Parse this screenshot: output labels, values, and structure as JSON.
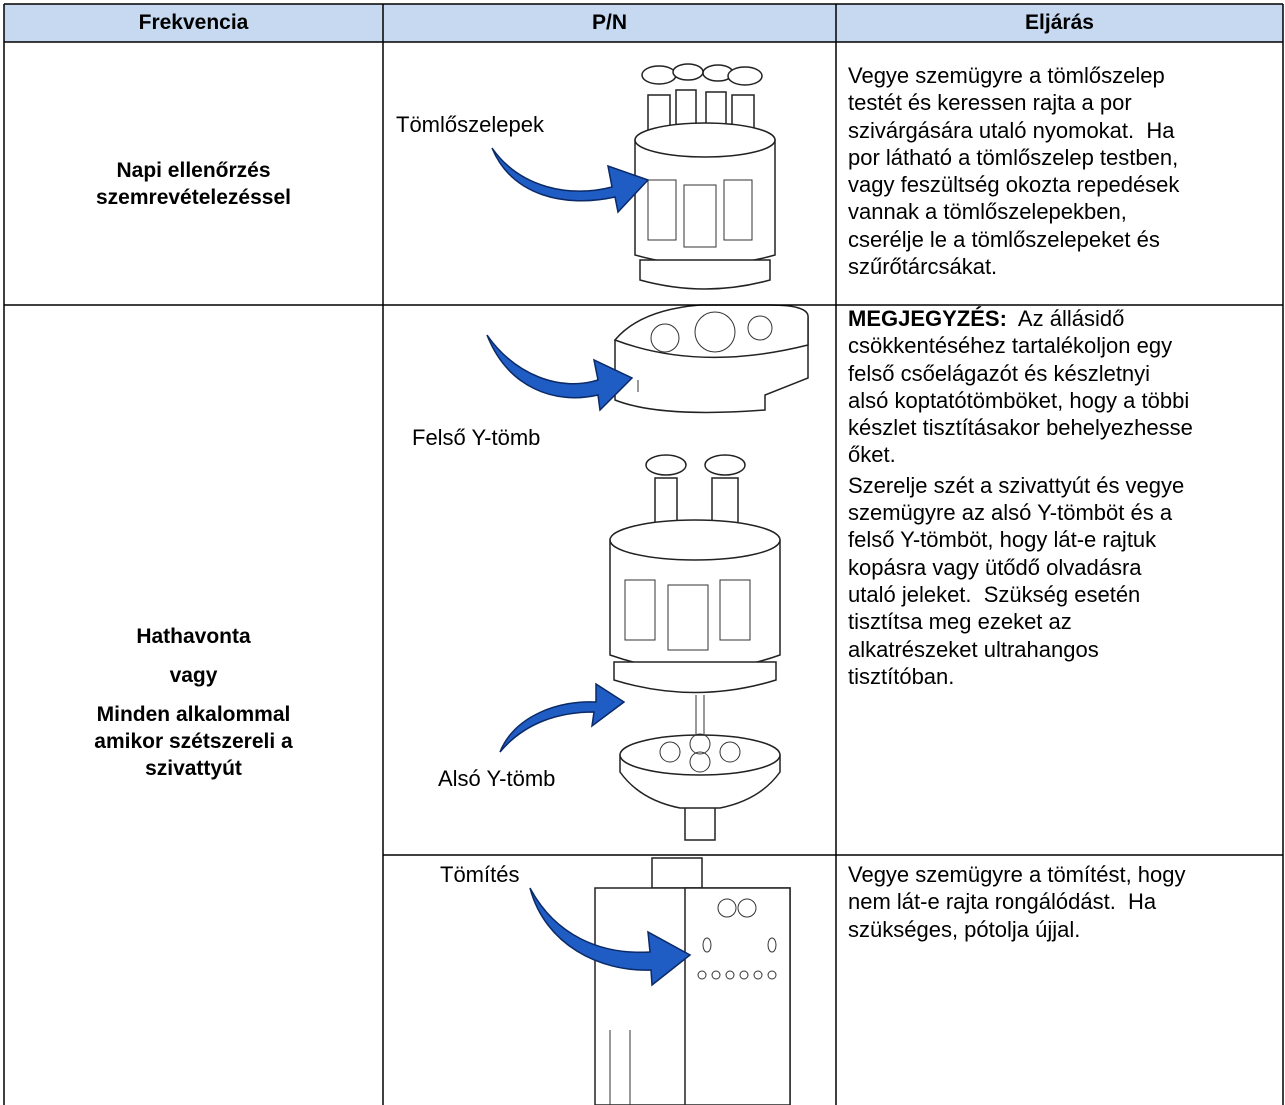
{
  "table": {
    "headers": [
      "Frekvencia",
      "P/N",
      "Eljárás"
    ],
    "rows": [
      {
        "frequency": [
          [
            "Napi ellenőrzés",
            "szemrevételezéssel"
          ]
        ],
        "items": [
          {
            "image_labels": [
              "Tömlőszelepek"
            ],
            "procedure": [
              {
                "lines": [
                  "Vegye szemügyre a tömlőszelep",
                  "testét és keressen rajta a por",
                  "szivárgására utaló nyomokat.  Ha",
                  "por látható a tömlőszelep testben,",
                  "vagy feszültség okozta repedések",
                  "vannak a tömlőszelepekben,",
                  "cserélje le a tömlőszelepeket és",
                  "szűrőtárcsákat."
                ]
              }
            ]
          }
        ]
      },
      {
        "frequency": [
          [
            "Hathavonta"
          ],
          [
            "vagy"
          ],
          [
            "Minden alkalommal",
            "amikor szétszereli a",
            "szivattyút"
          ]
        ],
        "items": [
          {
            "image_labels": [
              "Felső Y-tömb",
              "Alsó Y-tömb"
            ],
            "procedure": [
              {
                "lead": "MEGJEGYZÉS:",
                "lines": [
                  "  Az állásidő",
                  "csökkentéséhez tartalékoljon egy",
                  "felső csőelágazót és készletnyi",
                  "alsó koptatótömböket, hogy a többi",
                  "készlet tisztításakor behelyezhesse",
                  "őket."
                ]
              },
              {
                "lines": [
                  "Szerelje szét a szivattyút és vegye",
                  "szemügyre az alsó Y-tömböt és a",
                  "felső Y-tömböt, hogy lát-e rajtuk",
                  "kopásra vagy ütődő olvadásra",
                  "utaló jeleket.  Szükség esetén",
                  "tisztítsa meg ezeket az",
                  "alkatrészeket ultrahangos",
                  "tisztítóban."
                ]
              }
            ]
          },
          {
            "image_labels": [
              "Tömítés"
            ],
            "procedure": [
              {
                "lines": [
                  "Vegye szemügyre a tömítést, hogy",
                  "nem lát-e rajta rongálódást.  Ha",
                  "szükséges, pótolja újjal."
                ]
              }
            ]
          }
        ]
      }
    ]
  }
}
